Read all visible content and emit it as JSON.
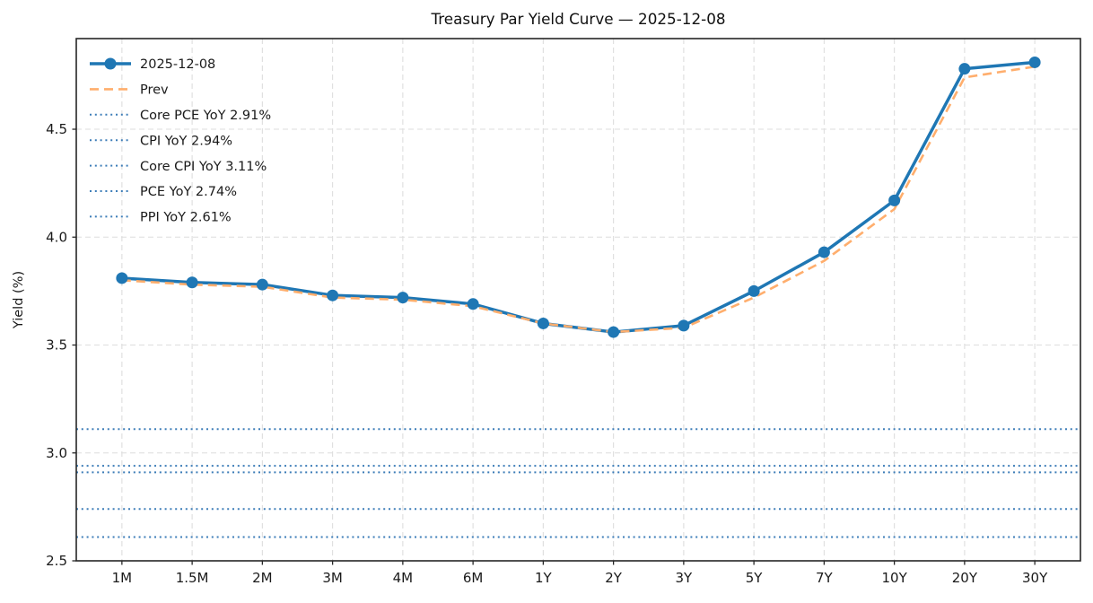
{
  "figure": {
    "title": "Treasury Par Yield Curve — 2025-12-08"
  },
  "chart_data": {
    "type": "line",
    "title": "Treasury Par Yield Curve — 2025-12-08",
    "categories": [
      "1M",
      "1.5M",
      "2M",
      "3M",
      "4M",
      "6M",
      "1Y",
      "2Y",
      "3Y",
      "5Y",
      "7Y",
      "10Y",
      "20Y",
      "30Y"
    ],
    "series": [
      {
        "name": "2025-12-08",
        "color": "#1f77b4",
        "line_style": "solid",
        "marker": "circle",
        "values": [
          3.81,
          3.79,
          3.78,
          3.73,
          3.72,
          3.69,
          3.6,
          3.56,
          3.59,
          3.75,
          3.93,
          4.17,
          4.78,
          4.81
        ]
      },
      {
        "name": "Prev",
        "color": "#ffae6d",
        "line_style": "dashed",
        "marker": "none",
        "values": [
          3.8,
          3.78,
          3.77,
          3.72,
          3.71,
          3.68,
          3.6,
          3.56,
          3.58,
          3.72,
          3.89,
          4.13,
          4.74,
          4.79
        ]
      }
    ],
    "reference_lines": [
      {
        "label": "Core PCE YoY 2.91%",
        "value": 2.91
      },
      {
        "label": "CPI YoY 2.94%",
        "value": 2.94
      },
      {
        "label": "Core CPI YoY 3.11%",
        "value": 3.11
      },
      {
        "label": "PCE YoY 2.74%",
        "value": 2.74
      },
      {
        "label": "PPI YoY 2.61%",
        "value": 2.61
      }
    ],
    "reference_style": {
      "color": "#3d7db8",
      "line_style": "dotted"
    },
    "xlabel": "",
    "ylabel": "Yield (%)",
    "ylim": [
      2.5,
      4.92
    ],
    "yticks": [
      2.5,
      3.0,
      3.5,
      4.0,
      4.5
    ],
    "grid": true,
    "grid_style": "dashed",
    "legend_position": "upper left",
    "colors": {
      "grid": "#dedede",
      "axis": "#262626",
      "text": "#1a1a1a",
      "background": "#ffffff"
    }
  }
}
